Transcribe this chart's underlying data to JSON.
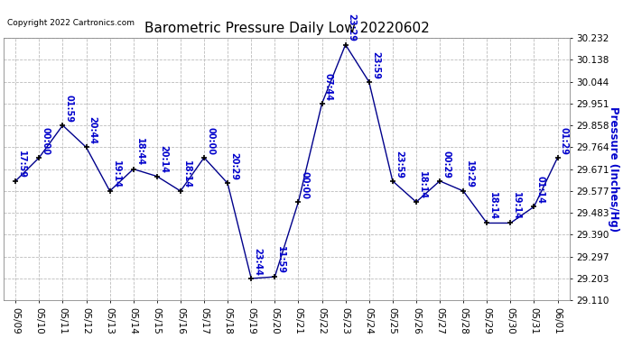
{
  "title": "Barometric Pressure Daily Low 20220602",
  "copyright": "Copyright 2022 Cartronics.com",
  "ylabel": "Pressure (Inches/Hg)",
  "background_color": "#ffffff",
  "grid_color": "#bbbbbb",
  "line_color": "#00008b",
  "marker_color": "#000000",
  "text_color": "#0000cc",
  "dates": [
    "05/09",
    "05/10",
    "05/11",
    "05/12",
    "05/13",
    "05/14",
    "05/15",
    "05/16",
    "05/17",
    "05/18",
    "05/19",
    "05/20",
    "05/21",
    "05/22",
    "05/23",
    "05/24",
    "05/25",
    "05/26",
    "05/27",
    "05/28",
    "05/29",
    "05/30",
    "05/31",
    "06/01"
  ],
  "values": [
    29.62,
    29.72,
    29.858,
    29.764,
    29.577,
    29.671,
    29.64,
    29.577,
    29.72,
    29.61,
    29.203,
    29.21,
    29.53,
    29.951,
    30.203,
    30.044,
    29.62,
    29.53,
    29.62,
    29.577,
    29.44,
    29.44,
    29.51,
    29.72
  ],
  "times": [
    "17:59",
    "00:00",
    "01:59",
    "20:44",
    "19:14",
    "18:44",
    "20:14",
    "18:14",
    "00:00",
    "20:29",
    "23:44",
    "11:59",
    "00:00",
    "07:44",
    "23:29",
    "23:59",
    "23:59",
    "18:14",
    "00:29",
    "19:29",
    "18:14",
    "19:14",
    "01:14",
    "01:29"
  ],
  "ylim_min": 29.11,
  "ylim_max": 30.232,
  "ytick_step": 0.0935,
  "yticks": [
    29.11,
    29.203,
    29.297,
    29.39,
    29.483,
    29.577,
    29.671,
    29.764,
    29.858,
    29.951,
    30.044,
    30.138,
    30.232
  ],
  "title_fontsize": 11,
  "tick_fontsize": 7.5,
  "label_fontsize": 7,
  "ylabel_fontsize": 8.5
}
